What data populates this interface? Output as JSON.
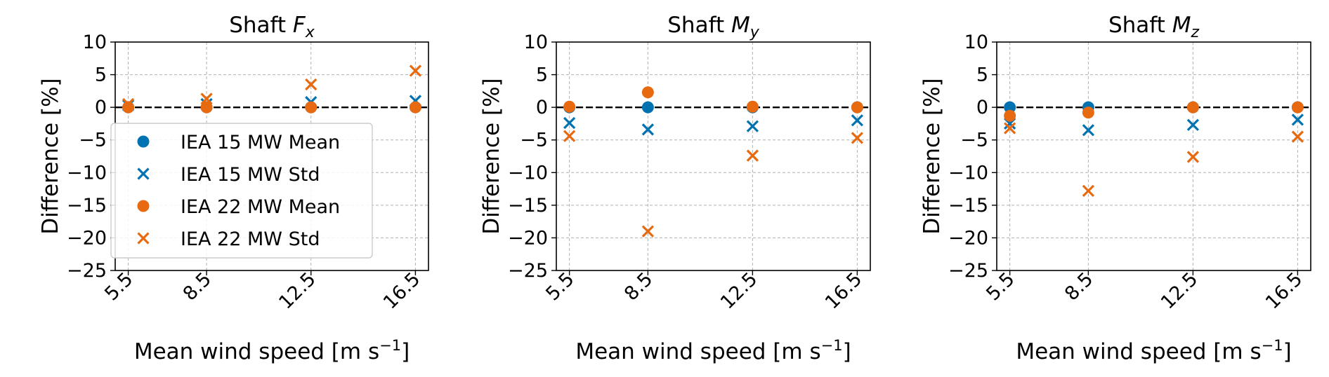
{
  "colors": {
    "iea15": "#0072B2",
    "iea22": "#E86A10",
    "zero_line": "#000000",
    "grid": "#b0b0b0"
  },
  "legend": {
    "location": "center-left",
    "entries": [
      {
        "label": "IEA 15 MW Mean",
        "marker": "circle",
        "color": "#0072B2"
      },
      {
        "label": "IEA 15 MW Std",
        "marker": "x",
        "color": "#0072B2"
      },
      {
        "label": "IEA 22 MW Mean",
        "marker": "circle",
        "color": "#E86A10"
      },
      {
        "label": "IEA 22 MW Std",
        "marker": "x",
        "color": "#E86A10"
      }
    ]
  },
  "chart_data": [
    {
      "type": "scatter",
      "title_prefix": "Shaft ",
      "title_symbol": "F",
      "title_sub": "x",
      "xlabel": "Mean wind speed [m s",
      "xlabel_sup": "−1",
      "xlabel_suffix": "]",
      "ylabel": "Difference [%]",
      "xlim": [
        5.0,
        17.0
      ],
      "ylim": [
        -25,
        10
      ],
      "xticks": [
        5.5,
        8.5,
        12.5,
        16.5
      ],
      "xtick_labels": [
        "5.5",
        "8.5",
        "12.5",
        "16.5"
      ],
      "yticks": [
        10,
        5,
        0,
        -5,
        -10,
        -15,
        -20,
        -25
      ],
      "ytick_labels": [
        "10",
        "5",
        "0",
        "−5",
        "−10",
        "−15",
        "−20",
        "−25"
      ],
      "grid": true,
      "zero_line": true,
      "series": [
        {
          "name": "IEA 15 MW Mean",
          "marker": "circle",
          "color": "#0072B2",
          "x": [
            5.5,
            8.5,
            12.5,
            16.5
          ],
          "y": [
            0.0,
            0.0,
            0.0,
            0.0
          ]
        },
        {
          "name": "IEA 15 MW Std",
          "marker": "x",
          "color": "#0072B2",
          "x": [
            5.5,
            8.5,
            12.5,
            16.5
          ],
          "y": [
            0.3,
            0.5,
            0.8,
            1.0
          ]
        },
        {
          "name": "IEA 22 MW Mean",
          "marker": "circle",
          "color": "#E86A10",
          "x": [
            5.5,
            8.5,
            12.5,
            16.5
          ],
          "y": [
            0.0,
            0.0,
            0.0,
            0.0
          ]
        },
        {
          "name": "IEA 22 MW Std",
          "marker": "x",
          "color": "#E86A10",
          "x": [
            5.5,
            8.5,
            12.5,
            16.5
          ],
          "y": [
            0.5,
            1.3,
            3.5,
            5.6
          ]
        }
      ]
    },
    {
      "type": "scatter",
      "title_prefix": "Shaft ",
      "title_symbol": "M",
      "title_sub": "y",
      "xlabel": "Mean wind speed [m s",
      "xlabel_sup": "−1",
      "xlabel_suffix": "]",
      "ylabel": "Difference [%]",
      "xlim": [
        5.0,
        17.0
      ],
      "ylim": [
        -25,
        10
      ],
      "xticks": [
        5.5,
        8.5,
        12.5,
        16.5
      ],
      "xtick_labels": [
        "5.5",
        "8.5",
        "12.5",
        "16.5"
      ],
      "yticks": [
        10,
        5,
        0,
        -5,
        -10,
        -15,
        -20,
        -25
      ],
      "ytick_labels": [
        "10",
        "5",
        "0",
        "−5",
        "−10",
        "−15",
        "−20",
        "−25"
      ],
      "grid": true,
      "zero_line": true,
      "series": [
        {
          "name": "IEA 15 MW Mean",
          "marker": "circle",
          "color": "#0072B2",
          "x": [
            5.5,
            8.5,
            12.5,
            16.5
          ],
          "y": [
            0.0,
            0.0,
            0.0,
            0.0
          ]
        },
        {
          "name": "IEA 15 MW Std",
          "marker": "x",
          "color": "#0072B2",
          "x": [
            5.5,
            8.5,
            12.5,
            16.5
          ],
          "y": [
            -2.4,
            -3.4,
            -2.9,
            -2.0
          ]
        },
        {
          "name": "IEA 22 MW Mean",
          "marker": "circle",
          "color": "#E86A10",
          "x": [
            5.5,
            8.5,
            12.5,
            16.5
          ],
          "y": [
            0.1,
            2.3,
            0.1,
            0.0
          ]
        },
        {
          "name": "IEA 22 MW Std",
          "marker": "x",
          "color": "#E86A10",
          "x": [
            5.5,
            8.5,
            12.5,
            16.5
          ],
          "y": [
            -4.4,
            -19.0,
            -7.4,
            -4.7
          ]
        }
      ]
    },
    {
      "type": "scatter",
      "title_prefix": "Shaft ",
      "title_symbol": "M",
      "title_sub": "z",
      "xlabel": "Mean wind speed [m s",
      "xlabel_sup": "−1",
      "xlabel_suffix": "]",
      "ylabel": "Difference [%]",
      "xlim": [
        5.0,
        17.0
      ],
      "ylim": [
        -25,
        10
      ],
      "xticks": [
        5.5,
        8.5,
        12.5,
        16.5
      ],
      "xtick_labels": [
        "5.5",
        "8.5",
        "12.5",
        "16.5"
      ],
      "yticks": [
        10,
        5,
        0,
        -5,
        -10,
        -15,
        -20,
        -25
      ],
      "ytick_labels": [
        "10",
        "5",
        "0",
        "−5",
        "−10",
        "−15",
        "−20",
        "−25"
      ],
      "grid": true,
      "zero_line": true,
      "series": [
        {
          "name": "IEA 15 MW Mean",
          "marker": "circle",
          "color": "#0072B2",
          "x": [
            5.5,
            8.5,
            12.5,
            16.5
          ],
          "y": [
            0.0,
            0.0,
            0.0,
            0.0
          ]
        },
        {
          "name": "IEA 15 MW Std",
          "marker": "x",
          "color": "#0072B2",
          "x": [
            5.5,
            8.5,
            12.5,
            16.5
          ],
          "y": [
            -2.5,
            -3.5,
            -2.7,
            -1.9
          ]
        },
        {
          "name": "IEA 22 MW Mean",
          "marker": "circle",
          "color": "#E86A10",
          "x": [
            5.5,
            8.5,
            12.5,
            16.5
          ],
          "y": [
            -1.3,
            -0.8,
            0.0,
            0.0
          ]
        },
        {
          "name": "IEA 22 MW Std",
          "marker": "x",
          "color": "#E86A10",
          "x": [
            5.5,
            8.5,
            12.5,
            16.5
          ],
          "y": [
            -3.2,
            -12.8,
            -7.6,
            -4.5
          ]
        }
      ]
    }
  ]
}
